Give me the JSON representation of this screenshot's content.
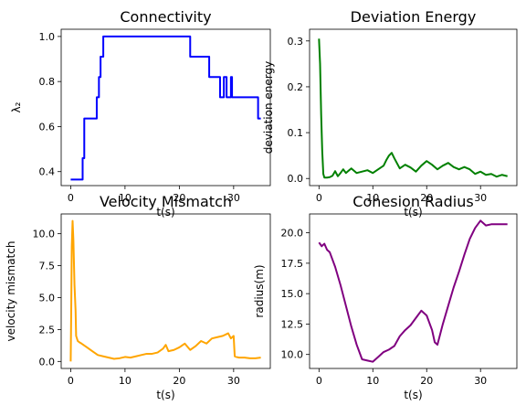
{
  "chart_data": [
    {
      "type": "line",
      "title": "Connectivity",
      "xlabel": "t(s)",
      "ylabel": "λ₂",
      "xlim": [
        -1.75,
        36.75
      ],
      "ylim": [
        0.338,
        1.032
      ],
      "xticks": [
        0,
        10,
        20,
        30
      ],
      "yticks": [
        0.4,
        0.6,
        0.8,
        1.0
      ],
      "ytick_labels": [
        "0.4",
        "0.6",
        "0.8",
        "1.0"
      ],
      "grid": false,
      "color": "#0000ff",
      "series": [
        {
          "step": true,
          "x": [
            0,
            2,
            2.2,
            2.5,
            4.5,
            4.8,
            5.2,
            5.5,
            6.0,
            21.8,
            22,
            25.5,
            27.5,
            28.2,
            28.7,
            29.5,
            29.7,
            34.5,
            35
          ],
          "y": [
            0.365,
            0.365,
            0.46,
            0.636,
            0.636,
            0.73,
            0.82,
            0.91,
            1.0,
            1.0,
            0.91,
            0.82,
            0.73,
            0.82,
            0.73,
            0.82,
            0.73,
            0.636,
            0.636
          ]
        }
      ]
    },
    {
      "type": "line",
      "title": "Deviation Energy",
      "xlabel": "t(s)",
      "ylabel": "deviation energy",
      "xlim": [
        -1.75,
        36.75
      ],
      "ylim": [
        -0.0155,
        0.3255
      ],
      "xticks": [
        0,
        10,
        20,
        30
      ],
      "yticks": [
        0.0,
        0.1,
        0.2,
        0.3
      ],
      "ytick_labels": [
        "0.0",
        "0.1",
        "0.2",
        "0.3"
      ],
      "grid": false,
      "color": "#008000",
      "series": [
        {
          "x": [
            0,
            0.2,
            0.4,
            0.6,
            0.8,
            1,
            1.5,
            2,
            2.5,
            3,
            3.5,
            4,
            4.5,
            5,
            6,
            7,
            8,
            9,
            10,
            11,
            12,
            12.5,
            13,
            13.5,
            14,
            15,
            16,
            17,
            18,
            19,
            20,
            21,
            22,
            23,
            24,
            25,
            26,
            27,
            28,
            29,
            30,
            31,
            32,
            33,
            34,
            35
          ],
          "y": [
            0.305,
            0.25,
            0.14,
            0.06,
            0.01,
            0.002,
            0.002,
            0.003,
            0.006,
            0.016,
            0.005,
            0.012,
            0.02,
            0.012,
            0.022,
            0.012,
            0.015,
            0.018,
            0.012,
            0.02,
            0.028,
            0.04,
            0.05,
            0.056,
            0.044,
            0.022,
            0.03,
            0.024,
            0.015,
            0.028,
            0.038,
            0.03,
            0.02,
            0.028,
            0.034,
            0.025,
            0.02,
            0.025,
            0.02,
            0.01,
            0.015,
            0.008,
            0.01,
            0.004,
            0.008,
            0.005
          ]
        }
      ]
    },
    {
      "type": "line",
      "title": "Velocity Mismatch",
      "xlabel": "t(s)",
      "ylabel": "velocity mismatch",
      "xlim": [
        -1.75,
        36.75
      ],
      "ylim": [
        -0.55,
        11.55
      ],
      "xticks": [
        0,
        10,
        20,
        30
      ],
      "yticks": [
        0.0,
        2.5,
        5.0,
        7.5,
        10.0
      ],
      "ytick_labels": [
        "0.0",
        "2.5",
        "5.0",
        "7.5",
        "10.0"
      ],
      "grid": false,
      "color": "#ffa500",
      "series": [
        {
          "x": [
            0,
            0.1,
            0.2,
            0.35,
            0.5,
            0.7,
            0.9,
            1,
            1.3,
            1.6,
            2,
            3,
            4,
            5,
            6,
            7,
            8,
            9,
            10,
            11,
            12,
            13,
            14,
            15,
            16,
            17,
            17.5,
            18,
            19,
            20,
            21,
            22,
            23,
            24,
            25,
            26,
            27,
            28,
            29,
            29.5,
            30,
            30.2,
            30.5,
            31,
            32,
            33,
            34,
            35
          ],
          "y": [
            0.0,
            4.0,
            9.0,
            11.0,
            9.5,
            6.0,
            4.0,
            2.0,
            1.6,
            1.5,
            1.4,
            1.1,
            0.8,
            0.5,
            0.4,
            0.3,
            0.2,
            0.25,
            0.35,
            0.3,
            0.4,
            0.5,
            0.6,
            0.6,
            0.7,
            1.0,
            1.3,
            0.8,
            0.9,
            1.1,
            1.4,
            0.9,
            1.2,
            1.6,
            1.4,
            1.8,
            1.9,
            2.0,
            2.2,
            1.8,
            2.0,
            0.4,
            0.35,
            0.3,
            0.3,
            0.25,
            0.25,
            0.3
          ]
        }
      ]
    },
    {
      "type": "line",
      "title": "Cohesion Radius",
      "xlabel": "t(s)",
      "ylabel": "radius(m)",
      "xlim": [
        -1.75,
        36.75
      ],
      "ylim": [
        8.85,
        21.55
      ],
      "xticks": [
        0,
        10,
        20,
        30
      ],
      "yticks": [
        10.0,
        12.5,
        15.0,
        17.5,
        20.0
      ],
      "ytick_labels": [
        "10.0",
        "12.5",
        "15.0",
        "17.5",
        "20.0"
      ],
      "grid": false,
      "color": "#800080",
      "series": [
        {
          "x": [
            0,
            0.5,
            1,
            1.5,
            2,
            3,
            4,
            5,
            6,
            7,
            8,
            9,
            10,
            11,
            12,
            13,
            14,
            15,
            16,
            17,
            18,
            19,
            20,
            21,
            21.5,
            22,
            23,
            24,
            25,
            26,
            27,
            28,
            29,
            30,
            31,
            32,
            33,
            34,
            35
          ],
          "y": [
            19.2,
            18.9,
            19.1,
            18.6,
            18.4,
            17.2,
            15.7,
            14.0,
            12.3,
            10.8,
            9.6,
            9.5,
            9.4,
            9.8,
            10.2,
            10.4,
            10.7,
            11.5,
            12.0,
            12.4,
            13.0,
            13.6,
            13.2,
            12.0,
            11.0,
            10.8,
            12.5,
            14.0,
            15.5,
            16.8,
            18.2,
            19.5,
            20.4,
            21.0,
            20.6,
            20.7,
            20.7,
            20.7,
            20.7
          ]
        }
      ]
    }
  ]
}
